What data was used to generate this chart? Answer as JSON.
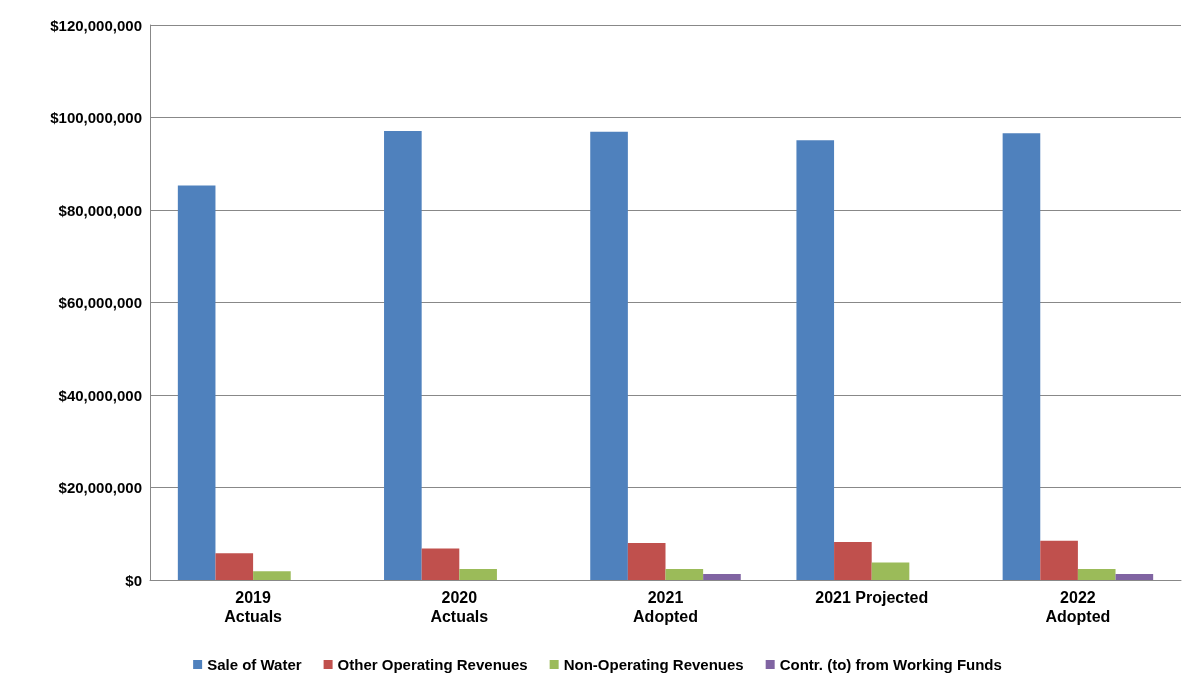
{
  "chart_data": {
    "type": "bar",
    "categories": [
      "2019\nActuals",
      "2020\nActuals",
      "2021\nAdopted",
      "2021 Projected",
      "2022\nAdopted"
    ],
    "series": [
      {
        "name": "Sale of Water",
        "color": "#4f81bd",
        "values": [
          85300000,
          97100000,
          96900000,
          95100000,
          96600000
        ]
      },
      {
        "name": "Other Operating Revenues",
        "color": "#c0504d",
        "values": [
          5800000,
          6800000,
          8000000,
          8200000,
          8500000
        ]
      },
      {
        "name": "Non-Operating Revenues",
        "color": "#9bbb59",
        "values": [
          1900000,
          2400000,
          2400000,
          3800000,
          2400000
        ]
      },
      {
        "name": "Contr. (to) from Working Funds",
        "color": "#8064a2",
        "values": [
          null,
          null,
          1300000,
          null,
          1300000
        ]
      }
    ],
    "ylim": [
      0,
      120000000
    ],
    "yticks": [
      {
        "value": 0,
        "label": "$0"
      },
      {
        "value": 20000000,
        "label": "$20,000,000"
      },
      {
        "value": 40000000,
        "label": "$40,000,000"
      },
      {
        "value": 60000000,
        "label": "$60,000,000"
      },
      {
        "value": 80000000,
        "label": "$80,000,000"
      },
      {
        "value": 100000000,
        "label": "$100,000,000"
      },
      {
        "value": 120000000,
        "label": "$120,000,000"
      }
    ],
    "grid": "y",
    "legend": "bottom"
  }
}
